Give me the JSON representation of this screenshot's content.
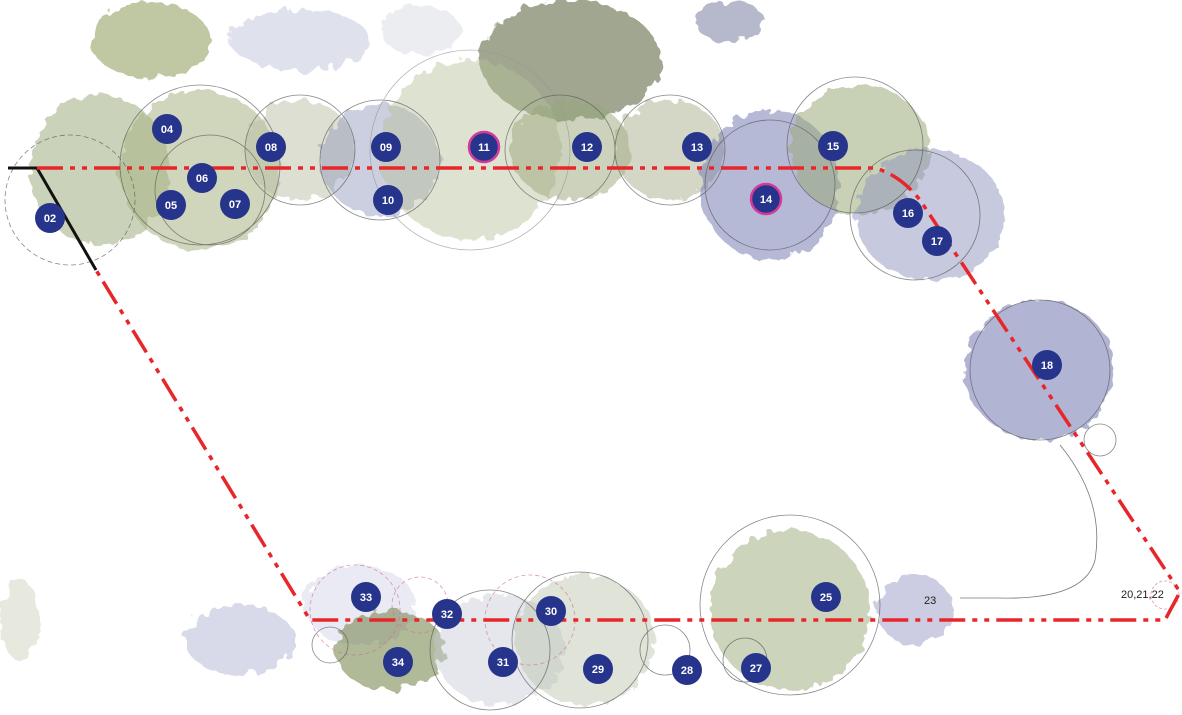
{
  "colors": {
    "boundary": "#e8262a",
    "edge": "#111111",
    "marker_fill": "#26358b",
    "marker_ring_highlight": "#d43a9a",
    "canopy_green": "#9fb07a",
    "canopy_blue": "#8a8fc0",
    "canopy_dark": "#5f6b45"
  },
  "tree_markers": [
    {
      "id": "02",
      "highlight": false
    },
    {
      "id": "04",
      "highlight": false
    },
    {
      "id": "05",
      "highlight": false
    },
    {
      "id": "06",
      "highlight": false
    },
    {
      "id": "07",
      "highlight": false
    },
    {
      "id": "08",
      "highlight": false
    },
    {
      "id": "09",
      "highlight": false
    },
    {
      "id": "10",
      "highlight": false
    },
    {
      "id": "11",
      "highlight": true
    },
    {
      "id": "12",
      "highlight": false
    },
    {
      "id": "13",
      "highlight": false
    },
    {
      "id": "14",
      "highlight": true
    },
    {
      "id": "15",
      "highlight": false
    },
    {
      "id": "16",
      "highlight": false
    },
    {
      "id": "17",
      "highlight": false
    },
    {
      "id": "18",
      "highlight": false
    },
    {
      "id": "25",
      "highlight": false
    },
    {
      "id": "27",
      "highlight": false
    },
    {
      "id": "28",
      "highlight": false
    },
    {
      "id": "29",
      "highlight": false
    },
    {
      "id": "30",
      "highlight": false
    },
    {
      "id": "31",
      "highlight": false
    },
    {
      "id": "32",
      "highlight": false
    },
    {
      "id": "33",
      "highlight": false
    },
    {
      "id": "34",
      "highlight": false
    }
  ],
  "plain_labels": [
    {
      "id": "label-23",
      "text": "23"
    },
    {
      "id": "label-20-21-22",
      "text": "20,21,22"
    }
  ]
}
